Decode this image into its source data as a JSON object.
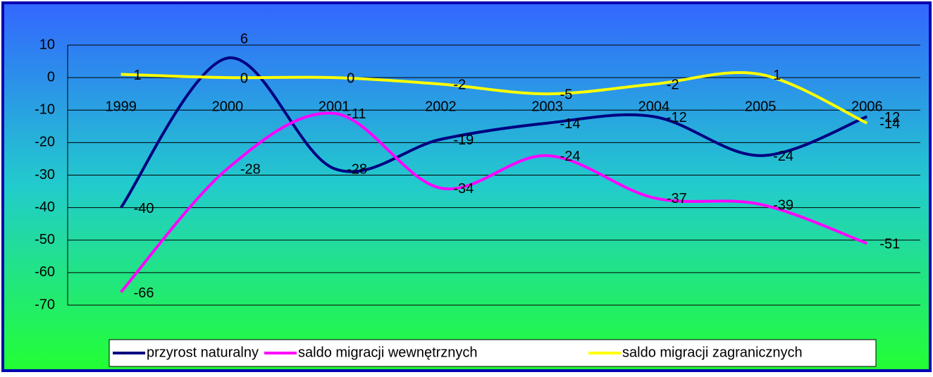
{
  "chart_data": {
    "type": "line",
    "categories": [
      "1999",
      "2000",
      "2001",
      "2002",
      "2003",
      "2004",
      "2005",
      "2006"
    ],
    "series": [
      {
        "name": "przyrost naturalny",
        "color": "#000080",
        "values": [
          -40,
          6,
          -28,
          -19,
          -14,
          -12,
          -24,
          -12
        ]
      },
      {
        "name": "saldo migracji wewnętrznych",
        "color": "#ff00ff",
        "values": [
          -66,
          -28,
          -11,
          -34,
          -24,
          -37,
          -39,
          -51
        ]
      },
      {
        "name": "saldo migracji zagranicznych",
        "color": "#ffff00",
        "values": [
          1,
          0,
          0,
          -2,
          -5,
          -2,
          1,
          -14
        ]
      }
    ],
    "ylim": [
      -70,
      10
    ],
    "yticks": [
      -70,
      -60,
      -50,
      -40,
      -30,
      -20,
      -10,
      0,
      10
    ],
    "grid": true,
    "smooth": true,
    "legend": "bottom"
  }
}
